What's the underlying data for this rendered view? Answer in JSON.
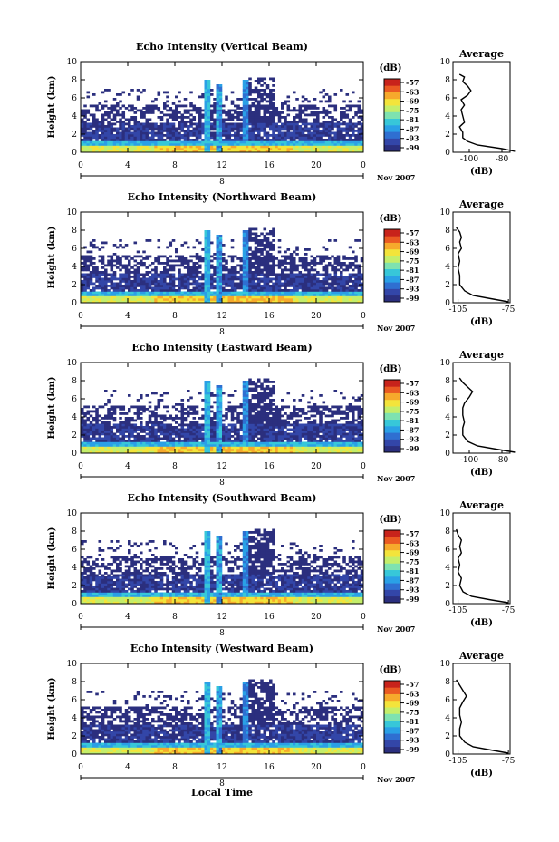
{
  "chart_data": [
    {
      "type": "heatmap",
      "title": "Echo Intensity (Vertical Beam)",
      "ylabel": "Height (km)",
      "ylim": [
        0,
        10
      ],
      "yticks": [
        "0",
        "2",
        "4",
        "6",
        "8",
        "10"
      ],
      "xlim": [
        0,
        24
      ],
      "xticks": [
        "0",
        "4",
        "8",
        "12",
        "16",
        "20",
        "0"
      ],
      "date_index": "8",
      "date_label": "Nov 2007",
      "colorbar": {
        "unit": "(dB)",
        "ticks": [
          "-57",
          "-63",
          "-69",
          "-75",
          "-81",
          "-87",
          "-93",
          "-99"
        ]
      },
      "average": {
        "title": "Average",
        "xlabel": "(dB)",
        "xticks": [
          "-100",
          "-80"
        ],
        "xlim": [
          -110,
          -75
        ],
        "profile": [
          [
            -72,
            0.1
          ],
          [
            -80,
            0.4
          ],
          [
            -95,
            0.8
          ],
          [
            -101,
            1.2
          ],
          [
            -104,
            1.6
          ],
          [
            -104,
            2.2
          ],
          [
            -106,
            2.8
          ],
          [
            -103,
            3.3
          ],
          [
            -104,
            4
          ],
          [
            -105,
            4.7
          ],
          [
            -103,
            5.2
          ],
          [
            -105,
            5.8
          ],
          [
            -101,
            6.3
          ],
          [
            -99,
            6.8
          ],
          [
            -101,
            7.3
          ],
          [
            -104,
            7.8
          ],
          [
            -103,
            8.3
          ],
          [
            -106,
            8.6
          ]
        ]
      }
    },
    {
      "type": "heatmap",
      "title": "Echo Intensity (Northward Beam)",
      "ylabel": "Height (km)",
      "ylim": [
        0,
        10
      ],
      "yticks": [
        "0",
        "2",
        "4",
        "6",
        "8",
        "10"
      ],
      "xlim": [
        0,
        24
      ],
      "xticks": [
        "0",
        "4",
        "8",
        "12",
        "16",
        "20",
        "0"
      ],
      "date_index": "8",
      "date_label": "Nov 2007",
      "colorbar": {
        "unit": "(dB)",
        "ticks": [
          "-57",
          "-63",
          "-69",
          "-75",
          "-81",
          "-87",
          "-93",
          "-99"
        ]
      },
      "average": {
        "title": "Average",
        "xlabel": "(dB)",
        "xticks": [
          "-105",
          "-75"
        ],
        "xlim": [
          -108,
          -74
        ],
        "profile": [
          [
            -75,
            0.1
          ],
          [
            -84,
            0.4
          ],
          [
            -96,
            0.8
          ],
          [
            -101,
            1.3
          ],
          [
            -104,
            2
          ],
          [
            -104,
            3
          ],
          [
            -105,
            3.8
          ],
          [
            -104,
            4.6
          ],
          [
            -105,
            5.4
          ],
          [
            -103,
            6
          ],
          [
            -104,
            6.7
          ],
          [
            -103,
            7.2
          ],
          [
            -104,
            7.8
          ],
          [
            -106,
            8.3
          ]
        ]
      }
    },
    {
      "type": "heatmap",
      "title": "Echo Intensity (Eastward Beam)",
      "ylabel": "Height (km)",
      "ylim": [
        0,
        10
      ],
      "yticks": [
        "0",
        "2",
        "4",
        "6",
        "8",
        "10"
      ],
      "xlim": [
        0,
        24
      ],
      "xticks": [
        "0",
        "4",
        "8",
        "12",
        "16",
        "20",
        "0"
      ],
      "date_index": "8",
      "date_label": "Nov 2007",
      "colorbar": {
        "unit": "(dB)",
        "ticks": [
          "-57",
          "-63",
          "-69",
          "-75",
          "-81",
          "-87",
          "-93",
          "-99"
        ]
      },
      "average": {
        "title": "Average",
        "xlabel": "(dB)",
        "xticks": [
          "-100",
          "-80"
        ],
        "xlim": [
          -110,
          -75
        ],
        "profile": [
          [
            -72,
            0.1
          ],
          [
            -82,
            0.4
          ],
          [
            -95,
            0.8
          ],
          [
            -101,
            1.3
          ],
          [
            -104,
            2
          ],
          [
            -104,
            2.8
          ],
          [
            -103,
            3.4
          ],
          [
            -104,
            4.2
          ],
          [
            -104,
            5
          ],
          [
            -103,
            5.5
          ],
          [
            -100,
            6.2
          ],
          [
            -98,
            6.8
          ],
          [
            -101,
            7.3
          ],
          [
            -104,
            7.8
          ],
          [
            -106,
            8.3
          ]
        ]
      }
    },
    {
      "type": "heatmap",
      "title": "Echo Intensity (Southward Beam)",
      "ylabel": "Height (km)",
      "ylim": [
        0,
        10
      ],
      "yticks": [
        "0",
        "2",
        "4",
        "6",
        "8",
        "10"
      ],
      "xlim": [
        0,
        24
      ],
      "xticks": [
        "0",
        "4",
        "8",
        "12",
        "16",
        "20",
        "0"
      ],
      "date_index": "8",
      "date_label": "Nov 2007",
      "colorbar": {
        "unit": "(dB)",
        "ticks": [
          "-57",
          "-63",
          "-69",
          "-75",
          "-81",
          "-87",
          "-93",
          "-99"
        ]
      },
      "average": {
        "title": "Average",
        "xlabel": "(dB)",
        "xticks": [
          "-105",
          "-75"
        ],
        "xlim": [
          -108,
          -74
        ],
        "profile": [
          [
            -75,
            0.1
          ],
          [
            -85,
            0.4
          ],
          [
            -97,
            0.8
          ],
          [
            -102,
            1.3
          ],
          [
            -104,
            2
          ],
          [
            -103,
            2.8
          ],
          [
            -105,
            3.5
          ],
          [
            -104,
            4.3
          ],
          [
            -105,
            5
          ],
          [
            -103,
            5.6
          ],
          [
            -104,
            6.3
          ],
          [
            -103,
            7
          ],
          [
            -105,
            7.6
          ],
          [
            -106,
            8.2
          ]
        ]
      }
    },
    {
      "type": "heatmap",
      "title": "Echo Intensity (Westward Beam)",
      "ylabel": "Height (km)",
      "ylim": [
        0,
        10
      ],
      "yticks": [
        "0",
        "2",
        "4",
        "6",
        "8",
        "10"
      ],
      "xlim": [
        0,
        24
      ],
      "xticks": [
        "0",
        "4",
        "8",
        "12",
        "16",
        "20",
        "0"
      ],
      "date_index": "8",
      "date_label": "Nov 2007",
      "xlabel": "Local Time",
      "colorbar": {
        "unit": "(dB)",
        "ticks": [
          "-57",
          "-63",
          "-69",
          "-75",
          "-81",
          "-87",
          "-93",
          "-99"
        ]
      },
      "average": {
        "title": "Average",
        "xlabel": "(dB)",
        "xticks": [
          "-105",
          "-75"
        ],
        "xlim": [
          -108,
          -74
        ],
        "profile": [
          [
            -75,
            0.1
          ],
          [
            -84,
            0.4
          ],
          [
            -96,
            0.8
          ],
          [
            -101,
            1.3
          ],
          [
            -104,
            2
          ],
          [
            -104,
            2.8
          ],
          [
            -103,
            3.5
          ],
          [
            -104,
            4.3
          ],
          [
            -104,
            5.1
          ],
          [
            -102,
            5.8
          ],
          [
            -100,
            6.4
          ],
          [
            -102,
            7
          ],
          [
            -104,
            7.6
          ],
          [
            -106,
            8.2
          ]
        ]
      }
    }
  ]
}
